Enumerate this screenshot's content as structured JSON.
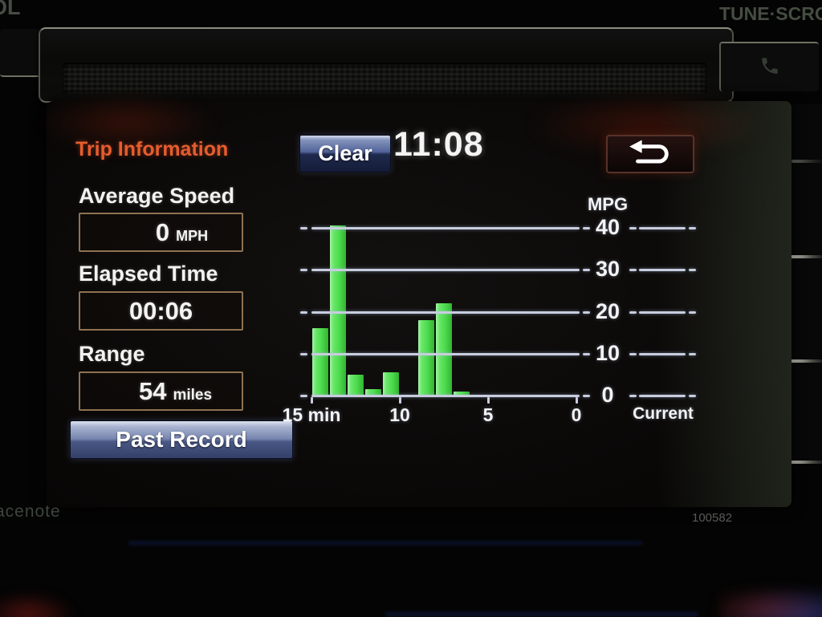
{
  "head_unit": {
    "knob_label_left_partial": "OL",
    "knob_label_right": "TUNE·SCRO",
    "photo_watermark": "acenote",
    "photo_id": "100582"
  },
  "screen": {
    "title": "Trip Information",
    "clear_button_label": "Clear",
    "clock": "11:08",
    "stats": [
      {
        "label": "Average Speed",
        "value": "0",
        "unit": "MPH"
      },
      {
        "label": "Elapsed Time",
        "value": "00:06",
        "unit": ""
      },
      {
        "label": "Range",
        "value": "54",
        "unit": "miles"
      }
    ],
    "past_record_button_label": "Past Record"
  },
  "chart_data": {
    "type": "bar",
    "title": "",
    "ylabel": "MPG",
    "xlabel": "",
    "x_tick_labels": [
      "15 min",
      "10",
      "5",
      "0"
    ],
    "y_ticks": [
      40,
      30,
      20,
      10,
      0
    ],
    "ylim": [
      0,
      42
    ],
    "grid": true,
    "current_column_label": "Current",
    "current_value": 0,
    "minutes_ago": [
      15,
      14,
      13,
      12,
      11,
      10,
      9,
      8,
      7,
      6,
      5,
      4,
      3,
      2,
      1
    ],
    "values": [
      16,
      40.5,
      5,
      1.5,
      5.5,
      0,
      18,
      22,
      1,
      0,
      0,
      0,
      0,
      0,
      0
    ],
    "bar_color": "#4fdc4f",
    "grid_color": "#c7cdde",
    "legend_position": "none"
  }
}
